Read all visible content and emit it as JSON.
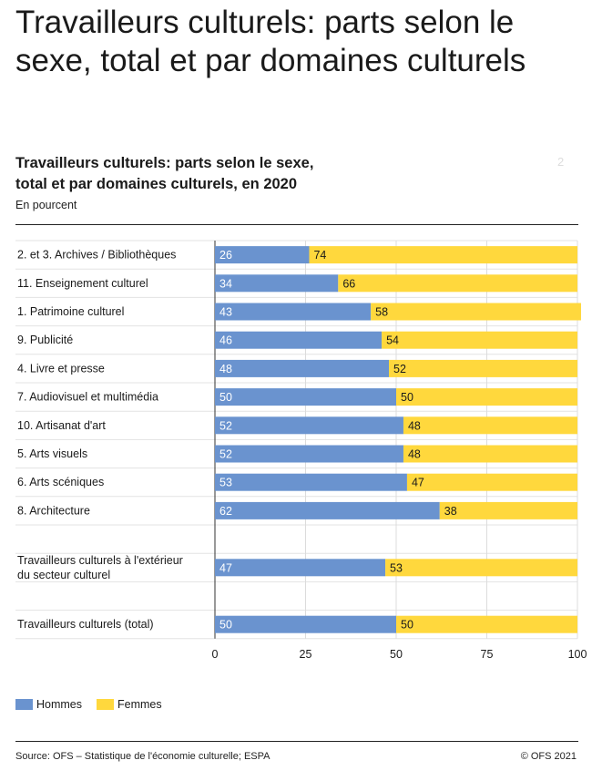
{
  "page": {
    "title": "Travailleurs culturels: parts selon le sexe, total et par domaines culturels"
  },
  "chart_data": {
    "type": "bar",
    "orientation": "horizontal",
    "stacked": true,
    "title": "Travailleurs culturels: parts selon le sexe, total et par domaines culturels, en 2020",
    "subtitle": "En pourcent",
    "categories": [
      "2. et 3. Archives / Bibliothèques",
      "11. Enseignement culturel",
      "1. Patrimoine culturel",
      "9. Publicité",
      "4. Livre et presse",
      "7. Audiovisuel et multimédia",
      "10. Artisanat d'art",
      "5. Arts visuels",
      "6. Arts scéniques",
      "8. Architecture",
      "",
      "Travailleurs culturels à l'extérieur du secteur culturel",
      "",
      "Travailleurs culturels (total)"
    ],
    "series": [
      {
        "name": "Hommes",
        "color": "#6a93cf",
        "values": [
          26,
          34,
          43,
          46,
          48,
          50,
          52,
          52,
          53,
          62,
          null,
          47,
          null,
          50
        ]
      },
      {
        "name": "Femmes",
        "color": "#ffd83d",
        "values": [
          74,
          66,
          58,
          54,
          52,
          50,
          48,
          48,
          47,
          38,
          null,
          53,
          null,
          50
        ]
      }
    ],
    "xlim": [
      0,
      100
    ],
    "xticks": [
      0,
      25,
      50,
      75,
      100
    ],
    "grid": true,
    "legend_position": "bottom-left"
  },
  "legend": {
    "items": [
      {
        "label": "Hommes",
        "color": "#6a93cf"
      },
      {
        "label": "Femmes",
        "color": "#ffd83d"
      }
    ]
  },
  "footer": {
    "source": "Source: OFS – Statistique de l'économie culturelle; ESPA",
    "copyright": "© OFS 2021"
  },
  "misc": {
    "corner_mark": "2"
  }
}
